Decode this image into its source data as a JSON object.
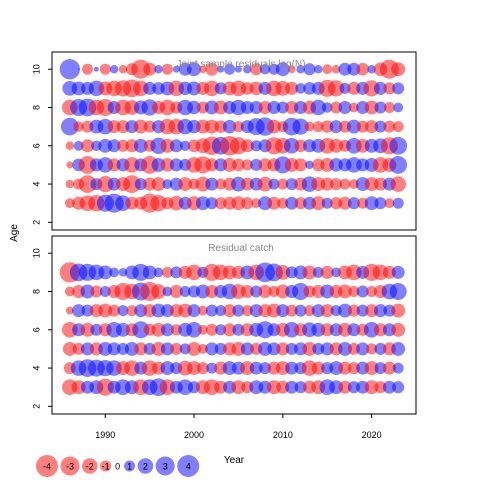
{
  "colors": {
    "positive": "#0000ff",
    "negative": "#ff0000",
    "frame": "#000000"
  },
  "chart_data": {
    "type": "scatter",
    "subtype": "bubble",
    "xlabel": "Year",
    "ylabel": "Age",
    "x_ticks": [
      1990,
      2000,
      2010,
      2020
    ],
    "y_ticks": [
      2,
      4,
      6,
      8,
      10
    ],
    "xlim": [
      1984,
      2025
    ],
    "ylim": [
      1.6,
      10.9
    ],
    "grid": false,
    "years_first": 1986,
    "years_last": 2023,
    "legend": {
      "placement": "bottom-left",
      "values": [
        -4,
        -3,
        -2,
        -1,
        0,
        1,
        2,
        3,
        4
      ],
      "labels": [
        "-4",
        "-3",
        "-2",
        "-1",
        "0",
        "1",
        "2",
        "3",
        "4"
      ]
    },
    "panels": [
      {
        "title": "Joint sample residuals log(N)",
        "ages": [
          3,
          4,
          5,
          6,
          7,
          8,
          9,
          10
        ],
        "residuals": {
          "10": [
            3.4,
            0,
            -1,
            0.2,
            -1.0,
            0.6,
            -0.6,
            -1.2,
            -3.0,
            -1.4,
            0.6,
            -1.0,
            0.4,
            1.4,
            1.6,
            -0.5,
            -1.4,
            0.4,
            1.0,
            0.4,
            0.6,
            -1.2,
            0.9,
            1.0,
            1.6,
            -0.5,
            0.6,
            1.2,
            0.6,
            -0.8,
            -0.6,
            1.4,
            1.4,
            -1.3,
            0.6,
            -1.5,
            -3.0,
            -1.6
          ],
          "9": [
            1.8,
            1.6,
            1.4,
            2.0,
            -1.6,
            -2.0,
            -2.2,
            -2.6,
            -2.0,
            1.4,
            1.3,
            1.6,
            -2.0,
            1.5,
            1.6,
            -1.4,
            -2.0,
            1.2,
            -1.6,
            -2.0,
            -1.3,
            -1.5,
            1.4,
            -2.0,
            -1.8,
            -1.4,
            0.9,
            1.3,
            1.4,
            -2.4,
            -2.2,
            1.0,
            -1.4,
            1.4,
            -2.2,
            1.4,
            -1.2,
            1.2
          ],
          "8": [
            -2.0,
            2.4,
            2.6,
            -2.0,
            -2.4,
            1.4,
            -2.0,
            -1.8,
            1.6,
            2.2,
            -1.4,
            -2.0,
            -1.2,
            2.0,
            1.5,
            -1.2,
            1.6,
            -1.6,
            1.4,
            2.0,
            1.4,
            1.4,
            -1.4,
            1.4,
            1.2,
            -1.4,
            1.4,
            -1.5,
            2.0,
            0.9,
            -1.2,
            1.4,
            -0.8,
            1.4,
            -1.6,
            1.2,
            -1.0,
            0.8
          ],
          "7": [
            2.6,
            -0.9,
            -1.2,
            1.6,
            2.0,
            -1.4,
            -1.4,
            1.4,
            -1.6,
            -1.2,
            1.4,
            -2.0,
            -2.0,
            2.0,
            1.5,
            -1.6,
            -1.6,
            -1.3,
            1.5,
            -1.0,
            1.4,
            2.4,
            2.8,
            -1.6,
            -1.0,
            2.6,
            2.2,
            -0.8,
            -1.0,
            -1.3,
            1.4,
            -1.2,
            1.6,
            -1.2,
            -1.4,
            1.2,
            -1.2,
            -1.0
          ],
          "6": [
            -0.6,
            0.8,
            -1.4,
            0.9,
            1.6,
            1.4,
            -1.2,
            -1.4,
            1.6,
            -1.2,
            2.2,
            -1.6,
            1.4,
            0.9,
            -1.3,
            -1.8,
            -2.8,
            2.6,
            -3.2,
            -2.4,
            -1.4,
            1.0,
            1.4,
            -2.4,
            -2.0,
            2.0,
            -1.3,
            1.4,
            1.6,
            -2.0,
            -1.6,
            -1.2,
            2.0,
            -1.6,
            1.6,
            1.8,
            -2.4,
            2.6
          ],
          "5": [
            -0.4,
            1.3,
            -2.6,
            1.4,
            2.0,
            -1.4,
            1.4,
            -2.0,
            1.4,
            -2.6,
            1.6,
            -1.5,
            1.4,
            1.2,
            -2.0,
            -2.4,
            -1.4,
            1.4,
            -1.6,
            -1.3,
            -1.0,
            1.2,
            -1.4,
            -1.4,
            2.4,
            -1.6,
            -1.4,
            0.6,
            -1.3,
            -1.6,
            1.5,
            1.4,
            2.0,
            1.4,
            1.6,
            -2.0,
            -1.6,
            2.6
          ],
          "4": [
            -0.6,
            -1.0,
            -2.6,
            1.2,
            -2.2,
            1.4,
            -1.6,
            -2.6,
            1.2,
            -1.4,
            -1.6,
            0.8,
            1.4,
            -1.6,
            -1.0,
            -1.8,
            1.4,
            -1.0,
            -1.4,
            1.8,
            -1.4,
            1.4,
            -1.8,
            1.0,
            -1.0,
            1.2,
            -1.4,
            2.0,
            -1.6,
            -1.4,
            -1.2,
            -1.0,
            -0.8,
            1.6,
            -1.6,
            -1.4,
            1.4,
            -2.0
          ],
          "3": [
            -0.8,
            -1.4,
            -2.0,
            -2.2,
            2.4,
            3.0,
            2.0,
            -1.4,
            -1.4,
            -3.0,
            -2.2,
            -1.2,
            -1.8,
            1.4,
            -1.6,
            1.6,
            1.2,
            -1.2,
            -1.4,
            -1.6,
            -1.2,
            -0.8,
            1.6,
            -1.4,
            -1.0,
            1.4,
            -1.2,
            1.4,
            -1.6,
            1.0,
            -1.2,
            -1.4,
            1.2,
            -1.0,
            1.6,
            1.2,
            -0.8,
            1.0
          ]
        }
      },
      {
        "title": "Residual catch",
        "ages": [
          3,
          4,
          5,
          6,
          7,
          8,
          9
        ],
        "residuals": {
          "9": [
            -3.4,
            2.6,
            2.4,
            2.0,
            1.6,
            0.8,
            0.6,
            1.6,
            2.4,
            1.6,
            0.8,
            -1.0,
            1.2,
            -1.4,
            -2.0,
            1.0,
            -2.4,
            -2.0,
            -1.6,
            -1.4,
            1.6,
            -2.0,
            3.2,
            2.6,
            -1.8,
            1.2,
            1.6,
            -1.6,
            1.0,
            -1.4,
            0.8,
            -1.6,
            -2.0,
            1.4,
            -2.4,
            -2.0,
            -1.4,
            1.4
          ],
          "8": [
            -0.8,
            -1.4,
            1.6,
            -1.2,
            1.0,
            -1.4,
            -2.4,
            -2.0,
            2.6,
            -3.0,
            -1.8,
            0.8,
            -1.4,
            1.0,
            1.2,
            1.6,
            -1.4,
            1.4,
            2.0,
            -1.8,
            -1.4,
            1.2,
            -1.4,
            -1.0,
            -1.6,
            1.4,
            2.4,
            -1.2,
            -1.4,
            1.6,
            -1.4,
            -1.6,
            -1.0,
            1.2,
            -1.0,
            -1.4,
            2.0,
            2.4
          ],
          "7": [
            -0.5,
            1.4,
            1.2,
            -1.4,
            -1.6,
            -1.2,
            1.0,
            -1.0,
            1.4,
            -1.4,
            1.6,
            1.4,
            -1.4,
            -1.6,
            1.4,
            -0.8,
            1.2,
            1.0,
            -1.4,
            1.2,
            -1.0,
            1.4,
            -1.4,
            -1.6,
            1.4,
            -1.2,
            1.2,
            -1.0,
            1.4,
            -1.4,
            1.0,
            1.6,
            -1.2,
            1.2,
            -1.4,
            1.4,
            1.2,
            -1.6
          ],
          "6": [
            -2.0,
            1.4,
            -1.6,
            1.2,
            -1.4,
            2.0,
            1.6,
            -1.4,
            2.4,
            -1.2,
            -1.6,
            1.4,
            -1.0,
            1.6,
            2.0,
            -0.8,
            -1.2,
            1.0,
            -1.4,
            1.2,
            -1.4,
            1.6,
            2.4,
            1.4,
            -1.6,
            2.0,
            -1.4,
            1.8,
            1.6,
            -1.4,
            1.4,
            -1.6,
            1.4,
            -1.2,
            2.0,
            -1.4,
            1.4,
            -1.6
          ],
          "5": [
            -1.6,
            -1.2,
            1.4,
            -1.4,
            1.6,
            1.4,
            1.2,
            1.6,
            -1.4,
            1.2,
            -1.6,
            1.4,
            -1.2,
            1.0,
            -1.6,
            -0.8,
            1.4,
            1.2,
            -1.4,
            -1.6,
            1.4,
            -1.2,
            1.6,
            1.4,
            -1.4,
            1.2,
            1.4,
            -1.6,
            1.2,
            1.4,
            -1.4,
            1.6,
            -1.2,
            1.4,
            -1.0,
            1.2,
            -1.4,
            1.6
          ],
          "4": [
            -1.2,
            2.0,
            2.6,
            2.4,
            2.2,
            2.0,
            -1.6,
            -2.0,
            1.4,
            -2.0,
            -1.4,
            1.6,
            1.2,
            -1.8,
            -1.6,
            -1.2,
            1.0,
            -1.4,
            1.6,
            1.4,
            -1.6,
            1.4,
            1.2,
            -1.4,
            -1.6,
            1.4,
            1.2,
            -2.0,
            -1.4,
            1.2,
            1.6,
            -1.4,
            -1.2,
            1.4,
            -1.6,
            1.2,
            -1.4,
            1.0
          ],
          "3": [
            -2.0,
            -1.6,
            1.4,
            1.6,
            -2.4,
            1.4,
            2.0,
            1.6,
            -2.0,
            2.0,
            2.6,
            -2.0,
            1.4,
            2.0,
            1.2,
            -1.6,
            -2.0,
            -1.4,
            1.4,
            -1.6,
            -1.2,
            1.6,
            1.4,
            -1.6,
            -1.4,
            1.4,
            1.2,
            -1.4,
            -1.6,
            2.0,
            1.6,
            -1.4,
            1.2,
            1.4,
            -1.6,
            -1.2,
            1.4,
            1.2
          ]
        }
      }
    ]
  }
}
